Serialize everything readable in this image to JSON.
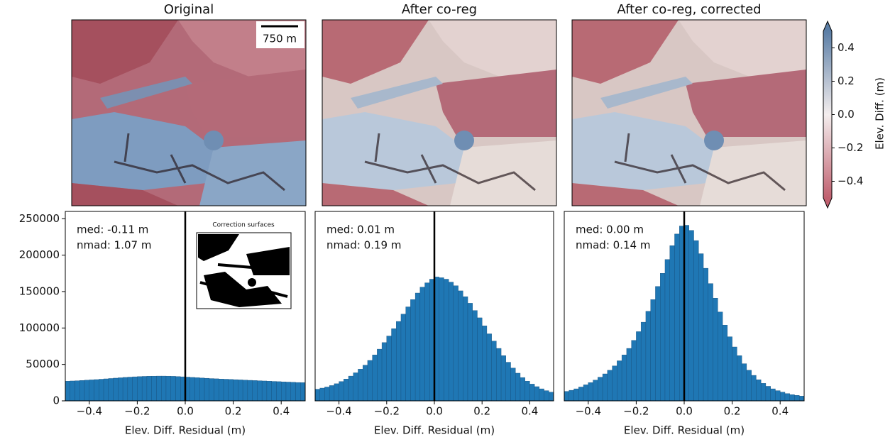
{
  "maps": [
    {
      "title": "Original"
    },
    {
      "title": "After co-reg"
    },
    {
      "title": "After co-reg, corrected"
    }
  ],
  "scale_bar": "750 m",
  "colorbar": {
    "label": "Elev. Diff. (m)",
    "lim": [
      -0.5,
      0.5
    ],
    "ticks": [
      {
        "value": -0.4,
        "label": "−0.4"
      },
      {
        "value": -0.2,
        "label": "−0.2"
      },
      {
        "value": 0,
        "label": "0.0"
      },
      0.2,
      0.4
    ],
    "colors": [
      "#c0606f",
      "#f4eeee",
      "#5b7ea6"
    ]
  },
  "chart_data": [
    {
      "type": "histogram",
      "xlabel": "Elev. Diff. Residual (m)",
      "color": "#1f77b4",
      "edge_color": "#16507e",
      "annotations": [
        "med: -0.11 m",
        "nmad: 1.07 m"
      ],
      "inset_title": "Correction surfaces",
      "vline": 0,
      "xlim": [
        -0.5,
        0.5
      ],
      "ylim": [
        0,
        260000
      ],
      "xticks": [
        {
          "value": -0.4,
          "label": "−0.4"
        },
        {
          "value": -0.2,
          "label": "−0.2"
        },
        {
          "value": 0,
          "label": "0.0"
        },
        0.2,
        0.4
      ],
      "yticks": [
        0,
        50000,
        100000,
        150000,
        200000,
        250000
      ],
      "bins": [
        -0.5,
        -0.48,
        -0.46,
        -0.44,
        -0.42,
        -0.4,
        -0.38,
        -0.36,
        -0.34,
        -0.32,
        -0.3,
        -0.28,
        -0.26,
        -0.24,
        -0.22,
        -0.2,
        -0.18,
        -0.16,
        -0.14,
        -0.12,
        -0.1,
        -0.08,
        -0.06,
        -0.04,
        -0.02,
        0,
        0.02,
        0.04,
        0.06,
        0.08,
        0.1,
        0.12,
        0.14,
        0.16,
        0.18,
        0.2,
        0.22,
        0.24,
        0.26,
        0.28,
        0.3,
        0.32,
        0.34,
        0.36,
        0.38,
        0.4,
        0.42,
        0.44,
        0.46,
        0.48,
        0.5
      ],
      "values": [
        27000,
        27300,
        27600,
        28000,
        28400,
        28800,
        29200,
        29700,
        30200,
        30700,
        31200,
        31700,
        32200,
        32600,
        33000,
        33300,
        33600,
        33800,
        33900,
        34000,
        34000,
        33900,
        33700,
        33400,
        33000,
        32600,
        32200,
        31800,
        31400,
        31000,
        30600,
        30300,
        30000,
        29700,
        29400,
        29100,
        28800,
        28500,
        28200,
        27900,
        27600,
        27300,
        27000,
        26700,
        26400,
        26100,
        25800,
        25500,
        25200,
        25000
      ]
    },
    {
      "type": "histogram",
      "xlabel": "Elev. Diff. Residual (m)",
      "color": "#1f77b4",
      "edge_color": "#16507e",
      "annotations": [
        "med: 0.01 m",
        "nmad: 0.19 m"
      ],
      "vline": 0,
      "xlim": [
        -0.5,
        0.5
      ],
      "ylim": [
        0,
        260000
      ],
      "xticks": [
        {
          "value": -0.4,
          "label": "−0.4"
        },
        {
          "value": -0.2,
          "label": "−0.2"
        },
        {
          "value": 0,
          "label": "0.0"
        },
        0.2,
        0.4
      ],
      "bins": [
        -0.5,
        -0.48,
        -0.46,
        -0.44,
        -0.42,
        -0.4,
        -0.38,
        -0.36,
        -0.34,
        -0.32,
        -0.3,
        -0.28,
        -0.26,
        -0.24,
        -0.22,
        -0.2,
        -0.18,
        -0.16,
        -0.14,
        -0.12,
        -0.1,
        -0.08,
        -0.06,
        -0.04,
        -0.02,
        0,
        0.02,
        0.04,
        0.06,
        0.08,
        0.1,
        0.12,
        0.14,
        0.16,
        0.18,
        0.2,
        0.22,
        0.24,
        0.26,
        0.28,
        0.3,
        0.32,
        0.34,
        0.36,
        0.38,
        0.4,
        0.42,
        0.44,
        0.46,
        0.48,
        0.5
      ],
      "values": [
        16000,
        17500,
        19000,
        21000,
        23500,
        26500,
        30000,
        34000,
        38500,
        43500,
        49000,
        55500,
        63000,
        71000,
        80000,
        89000,
        99000,
        109000,
        119000,
        129000,
        139000,
        148000,
        156000,
        162000,
        167000,
        170000,
        169000,
        167000,
        163000,
        158000,
        151000,
        143000,
        134000,
        124000,
        114000,
        103000,
        92000,
        82000,
        72000,
        62000,
        53000,
        45000,
        38000,
        32000,
        27000,
        23000,
        19500,
        16500,
        14000,
        12000
      ]
    },
    {
      "type": "histogram",
      "xlabel": "Elev. Diff. Residual (m)",
      "color": "#1f77b4",
      "edge_color": "#16507e",
      "annotations": [
        "med: 0.00 m",
        "nmad: 0.14 m"
      ],
      "vline": 0,
      "xlim": [
        -0.5,
        0.5
      ],
      "ylim": [
        0,
        260000
      ],
      "xticks": [
        {
          "value": -0.4,
          "label": "−0.4"
        },
        {
          "value": -0.2,
          "label": "−0.2"
        },
        {
          "value": 0,
          "label": "0.0"
        },
        0.2,
        0.4
      ],
      "bins": [
        -0.5,
        -0.48,
        -0.46,
        -0.44,
        -0.42,
        -0.4,
        -0.38,
        -0.36,
        -0.34,
        -0.32,
        -0.3,
        -0.28,
        -0.26,
        -0.24,
        -0.22,
        -0.2,
        -0.18,
        -0.16,
        -0.14,
        -0.12,
        -0.1,
        -0.08,
        -0.06,
        -0.04,
        -0.02,
        0,
        0.02,
        0.04,
        0.06,
        0.08,
        0.1,
        0.12,
        0.14,
        0.16,
        0.18,
        0.2,
        0.22,
        0.24,
        0.26,
        0.28,
        0.3,
        0.32,
        0.34,
        0.36,
        0.38,
        0.4,
        0.42,
        0.44,
        0.46,
        0.48,
        0.5
      ],
      "values": [
        13000,
        14500,
        16500,
        19000,
        22000,
        25000,
        28500,
        32500,
        37000,
        42000,
        48000,
        55000,
        63000,
        72000,
        83000,
        95000,
        108000,
        123000,
        139000,
        157000,
        175000,
        194000,
        213000,
        229000,
        240000,
        241000,
        234000,
        220000,
        202000,
        182000,
        161000,
        141000,
        122000,
        104000,
        88000,
        74000,
        62000,
        51000,
        42000,
        35000,
        29000,
        24000,
        20000,
        16500,
        14000,
        12000,
        10000,
        8500,
        7500,
        6500
      ]
    }
  ]
}
